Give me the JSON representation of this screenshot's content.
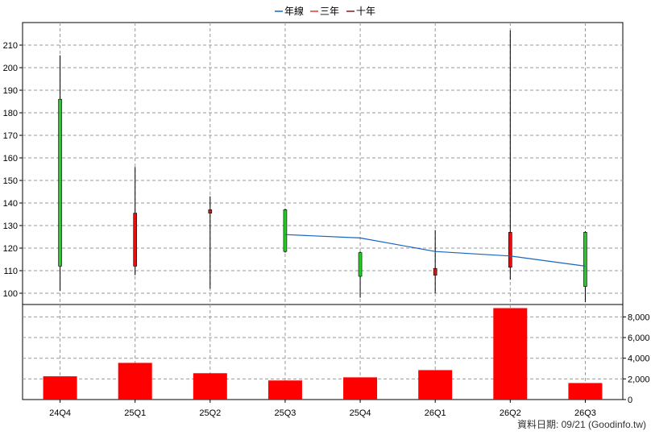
{
  "legend": {
    "items": [
      {
        "label": "年線",
        "color": "#1565c0"
      },
      {
        "label": "三年",
        "color": "#e53935"
      },
      {
        "label": "十年",
        "color": "#8b1a1a"
      }
    ]
  },
  "footer": {
    "text": "資料日期: 09/21  (Goodinfo.tw)"
  },
  "chart_data": [
    {
      "type": "candlestick",
      "categories": [
        "24Q4",
        "25Q1",
        "25Q2",
        "25Q3",
        "25Q4",
        "26Q1",
        "26Q2",
        "26Q3"
      ],
      "ylim": [
        95,
        220
      ],
      "yticks": [
        100,
        110,
        120,
        130,
        140,
        150,
        160,
        170,
        180,
        190,
        200,
        210
      ],
      "grid": true,
      "candles": [
        {
          "open": 112,
          "close": 186,
          "high": 205.5,
          "low": 101,
          "color": "#22cc22"
        },
        {
          "open": 135.5,
          "close": 112,
          "high": 156,
          "low": 108,
          "color": "#dd1111"
        },
        {
          "open": 137,
          "close": 135.5,
          "high": 143,
          "low": 102,
          "color": "#dd1111"
        },
        {
          "open": 118.5,
          "close": 137,
          "high": 137.5,
          "low": 118,
          "color": "#22cc22"
        },
        {
          "open": 107.5,
          "close": 118,
          "high": 118.5,
          "low": 98,
          "color": "#22cc22"
        },
        {
          "open": 111,
          "close": 108,
          "high": 128,
          "low": 100,
          "color": "#dd1111"
        },
        {
          "open": 127,
          "close": 111.5,
          "high": 216.5,
          "low": 106,
          "color": "#dd1111"
        },
        {
          "open": 103,
          "close": 127,
          "high": 127.5,
          "low": 96,
          "color": "#22cc22"
        }
      ],
      "series": [
        {
          "name": "年線",
          "color": "#1565c0",
          "points": [
            {
              "x": "25Q3",
              "y": 126
            },
            {
              "x": "25Q4",
              "y": 124.5
            },
            {
              "x": "26Q1",
              "y": 118.5
            },
            {
              "x": "26Q2",
              "y": 116.5
            },
            {
              "x": "26Q3",
              "y": 112
            }
          ]
        }
      ]
    },
    {
      "type": "bar",
      "categories": [
        "24Q4",
        "25Q1",
        "25Q2",
        "25Q3",
        "25Q4",
        "26Q1",
        "26Q2",
        "26Q3"
      ],
      "values": [
        2250,
        3550,
        2550,
        1850,
        2150,
        2850,
        8850,
        1600
      ],
      "color": "#ff0000",
      "ylim": [
        0,
        9200
      ],
      "yticks": [
        0,
        2000,
        4000,
        6000,
        8000
      ],
      "yticklabels": [
        "0",
        "2,000",
        "4,000",
        "6,000",
        "8,000"
      ],
      "grid": true
    }
  ]
}
